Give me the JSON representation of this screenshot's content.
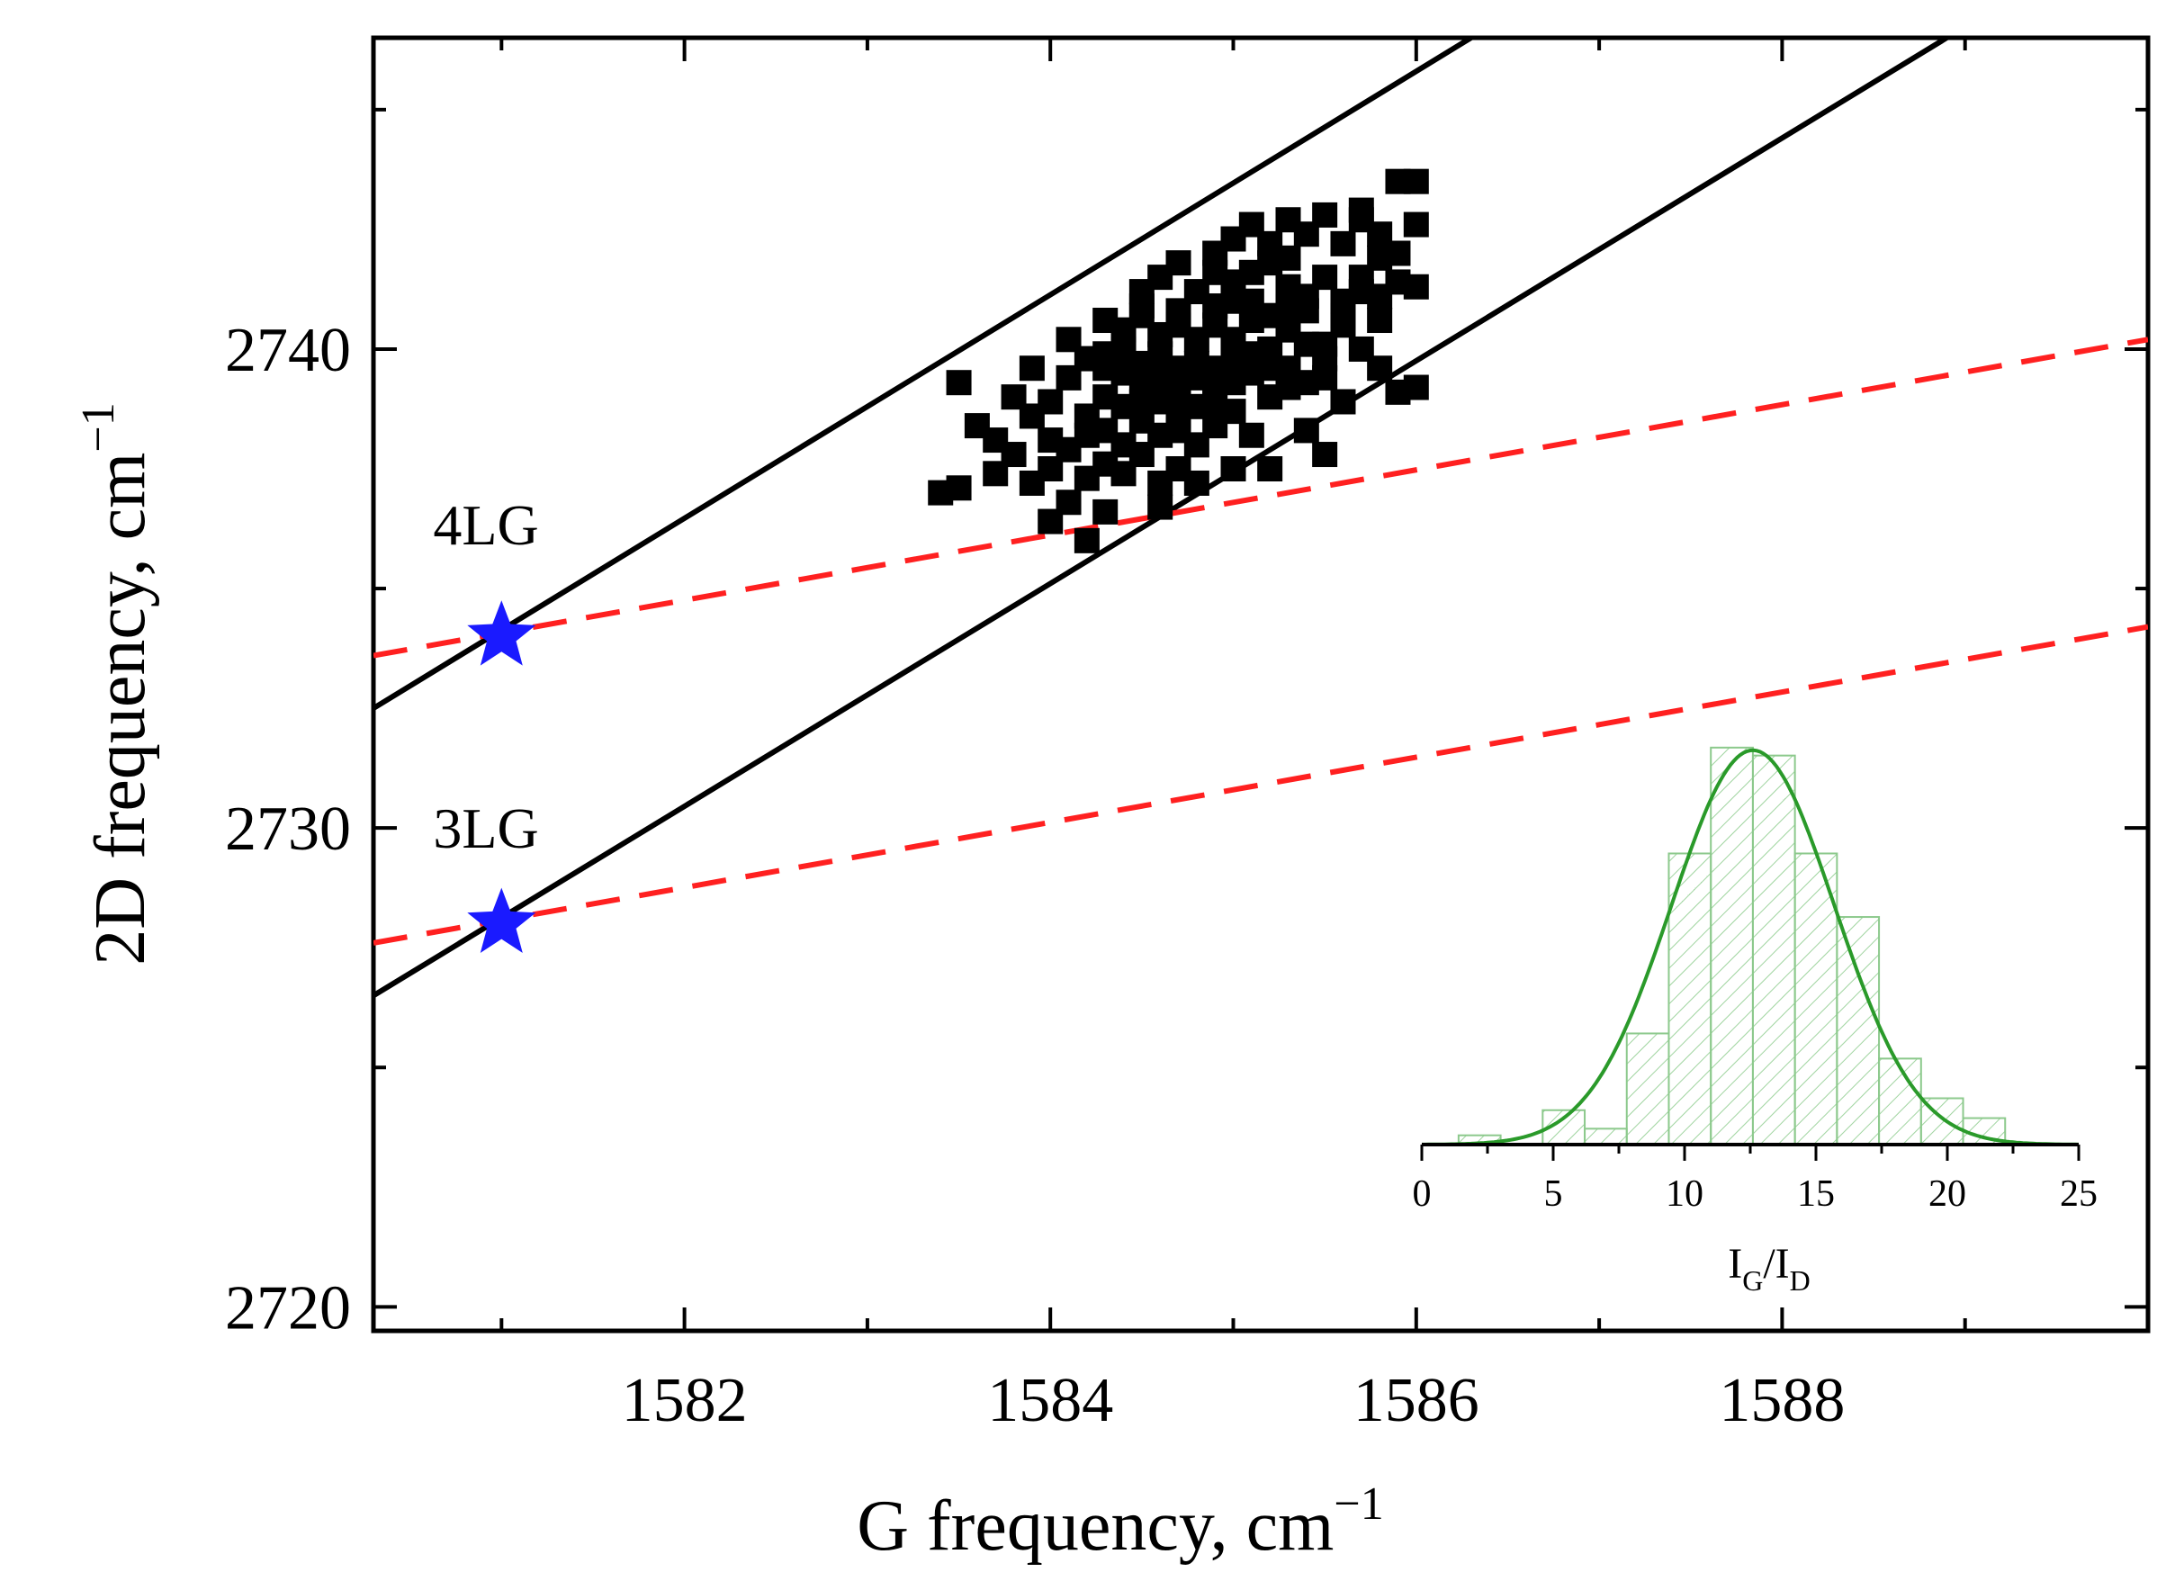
{
  "chart_data": [
    {
      "type": "scatter",
      "xlabel": "G frequency, cm",
      "xlabel_sup": "−1",
      "ylabel": "2D frequency, cm",
      "ylabel_sup": "−1",
      "xlim": [
        1580.3,
        1590.0
      ],
      "ylim": [
        2719.5,
        2746.5
      ],
      "x_ticks": [
        1582,
        1584,
        1586,
        1588
      ],
      "x_minor_ticks": [
        1581,
        1583,
        1585,
        1587,
        1589
      ],
      "y_ticks": [
        2720,
        2730,
        2740
      ],
      "y_minor_ticks": [
        2725,
        2735,
        2745
      ],
      "grid": false,
      "solid_lines": [
        {
          "x": [
            1580.3,
            1586.3
          ],
          "y": [
            2732.5,
            2746.5
          ]
        },
        {
          "x": [
            1580.3,
            1588.9
          ],
          "y": [
            2726.5,
            2746.5
          ]
        }
      ],
      "dashed_lines": [
        {
          "x": [
            1580.3,
            1590.0
          ],
          "y": [
            2733.6,
            2740.2
          ]
        },
        {
          "x": [
            1580.3,
            1590.0
          ],
          "y": [
            2727.6,
            2734.2
          ]
        }
      ],
      "line_colors": {
        "solid": "#000000",
        "dashed": "#ff2020"
      },
      "stars": [
        {
          "label": "4LG",
          "x": 1581.0,
          "y": 2734.0
        },
        {
          "label": "3LG",
          "x": 1581.0,
          "y": 2728.0
        }
      ],
      "star_color": "#1a1aff",
      "scatter_color": "#000000",
      "scatter_points": [
        [
          1583.4,
          2737.0
        ],
        [
          1583.5,
          2737.1
        ],
        [
          1583.5,
          2739.3
        ],
        [
          1583.6,
          2738.4
        ],
        [
          1583.7,
          2738.1
        ],
        [
          1583.7,
          2737.4
        ],
        [
          1583.8,
          2739.0
        ],
        [
          1583.8,
          2737.8
        ],
        [
          1583.9,
          2737.2
        ],
        [
          1583.9,
          2738.6
        ],
        [
          1583.9,
          2739.6
        ],
        [
          1584.0,
          2738.9
        ],
        [
          1584.0,
          2738.1
        ],
        [
          1584.0,
          2737.5
        ],
        [
          1584.0,
          2736.4
        ],
        [
          1584.1,
          2739.4
        ],
        [
          1584.1,
          2737.9
        ],
        [
          1584.1,
          2736.8
        ],
        [
          1584.1,
          2740.2
        ],
        [
          1584.2,
          2738.6
        ],
        [
          1584.2,
          2737.3
        ],
        [
          1584.2,
          2736.0
        ],
        [
          1584.2,
          2739.8
        ],
        [
          1584.3,
          2739.0
        ],
        [
          1584.3,
          2737.6
        ],
        [
          1584.3,
          2738.3
        ],
        [
          1584.3,
          2740.6
        ],
        [
          1584.3,
          2736.6
        ],
        [
          1584.4,
          2739.5
        ],
        [
          1584.4,
          2738.0
        ],
        [
          1584.4,
          2738.8
        ],
        [
          1584.4,
          2740.0
        ],
        [
          1584.4,
          2737.4
        ],
        [
          1584.5,
          2739.2
        ],
        [
          1584.5,
          2740.9
        ],
        [
          1584.5,
          2738.5
        ],
        [
          1584.5,
          2737.8
        ],
        [
          1584.5,
          2741.2
        ],
        [
          1584.5,
          2739.7
        ],
        [
          1584.6,
          2738.9
        ],
        [
          1584.6,
          2740.3
        ],
        [
          1584.6,
          2737.2
        ],
        [
          1584.6,
          2741.5
        ],
        [
          1584.6,
          2738.2
        ],
        [
          1584.6,
          2736.7
        ],
        [
          1584.7,
          2739.6
        ],
        [
          1584.7,
          2740.8
        ],
        [
          1584.7,
          2738.6
        ],
        [
          1584.7,
          2741.8
        ],
        [
          1584.7,
          2737.5
        ],
        [
          1584.7,
          2739.1
        ],
        [
          1584.8,
          2740.2
        ],
        [
          1584.8,
          2738.8
        ],
        [
          1584.8,
          2741.2
        ],
        [
          1584.8,
          2739.7
        ],
        [
          1584.8,
          2738.0
        ],
        [
          1584.8,
          2737.2
        ],
        [
          1584.9,
          2741.6
        ],
        [
          1584.9,
          2740.5
        ],
        [
          1584.9,
          2739.3
        ],
        [
          1584.9,
          2738.4
        ],
        [
          1584.9,
          2742.0
        ],
        [
          1584.9,
          2740.9
        ],
        [
          1585.0,
          2739.8
        ],
        [
          1585.0,
          2741.4
        ],
        [
          1585.0,
          2738.7
        ],
        [
          1585.0,
          2740.2
        ],
        [
          1585.0,
          2742.3
        ],
        [
          1585.0,
          2737.5
        ],
        [
          1585.1,
          2741.0
        ],
        [
          1585.1,
          2739.5
        ],
        [
          1585.1,
          2740.6
        ],
        [
          1585.1,
          2742.6
        ],
        [
          1585.1,
          2738.2
        ],
        [
          1585.2,
          2741.8
        ],
        [
          1585.2,
          2740.0
        ],
        [
          1585.2,
          2739.0
        ],
        [
          1585.2,
          2742.2
        ],
        [
          1585.2,
          2737.5
        ],
        [
          1585.3,
          2741.3
        ],
        [
          1585.3,
          2740.4
        ],
        [
          1585.3,
          2742.7
        ],
        [
          1585.3,
          2739.6
        ],
        [
          1585.3,
          2741.9
        ],
        [
          1585.4,
          2740.8
        ],
        [
          1585.4,
          2739.3
        ],
        [
          1585.4,
          2742.4
        ],
        [
          1585.4,
          2738.3
        ],
        [
          1585.5,
          2741.5
        ],
        [
          1585.5,
          2740.1
        ],
        [
          1585.5,
          2742.8
        ],
        [
          1585.5,
          2739.8
        ],
        [
          1585.5,
          2737.8
        ],
        [
          1585.6,
          2741.0
        ],
        [
          1585.6,
          2742.2
        ],
        [
          1585.6,
          2740.5
        ],
        [
          1585.6,
          2738.9
        ],
        [
          1585.7,
          2742.7
        ],
        [
          1585.7,
          2741.5
        ],
        [
          1585.7,
          2740.0
        ],
        [
          1585.7,
          2742.9
        ],
        [
          1585.8,
          2741.9
        ],
        [
          1585.8,
          2740.6
        ],
        [
          1585.8,
          2742.4
        ],
        [
          1585.8,
          2739.6
        ],
        [
          1585.9,
          2741.4
        ],
        [
          1585.9,
          2743.5
        ],
        [
          1585.9,
          2739.1
        ],
        [
          1586.0,
          2741.3
        ],
        [
          1586.0,
          2739.2
        ],
        [
          1586.0,
          2743.5
        ],
        [
          1584.3,
          2739.9
        ],
        [
          1584.4,
          2740.4
        ],
        [
          1584.5,
          2740.7
        ],
        [
          1584.6,
          2739.9
        ],
        [
          1584.7,
          2740.5
        ],
        [
          1584.8,
          2739.4
        ],
        [
          1584.9,
          2739.6
        ],
        [
          1585.0,
          2741.0
        ],
        [
          1585.1,
          2739.9
        ],
        [
          1585.2,
          2740.7
        ],
        [
          1585.3,
          2739.2
        ],
        [
          1585.4,
          2741.1
        ],
        [
          1584.2,
          2738.2
        ],
        [
          1584.3,
          2739.6
        ],
        [
          1584.5,
          2738.9
        ],
        [
          1584.6,
          2739.4
        ],
        [
          1584.7,
          2738.3
        ],
        [
          1584.9,
          2738.9
        ],
        [
          1585.0,
          2739.3
        ],
        [
          1585.2,
          2739.6
        ],
        [
          1585.4,
          2740.1
        ],
        [
          1585.6,
          2740.7
        ],
        [
          1585.7,
          2741.2
        ],
        [
          1585.9,
          2742.0
        ],
        [
          1585.8,
          2741.1
        ],
        [
          1586.0,
          2742.6
        ],
        [
          1585.5,
          2739.4
        ],
        [
          1585.3,
          2740.9
        ],
        [
          1585.1,
          2741.6
        ]
      ]
    },
    {
      "type": "bar",
      "xlabel_main": "I",
      "xlabel_sub1": "G",
      "xlabel_slash": "/I",
      "xlabel_sub2": "D",
      "xlim": [
        0,
        25
      ],
      "x_ticks": [
        0,
        5,
        10,
        15,
        20,
        25
      ],
      "bin_width": 1.6,
      "bins": [
        {
          "x0": 1.4,
          "h": 0.7
        },
        {
          "x0": 4.6,
          "h": 2.6
        },
        {
          "x0": 6.2,
          "h": 1.2
        },
        {
          "x0": 7.8,
          "h": 8.4
        },
        {
          "x0": 9.4,
          "h": 22.0
        },
        {
          "x0": 11.0,
          "h": 30.0
        },
        {
          "x0": 12.6,
          "h": 29.4
        },
        {
          "x0": 14.2,
          "h": 22.0
        },
        {
          "x0": 15.8,
          "h": 17.2
        },
        {
          "x0": 17.4,
          "h": 6.5
        },
        {
          "x0": 19.0,
          "h": 3.5
        },
        {
          "x0": 20.6,
          "h": 2.0
        }
      ],
      "ylim": [
        0,
        34
      ],
      "fit": {
        "type": "gaussian",
        "mean": 12.6,
        "sigma": 3.1,
        "amplitude": 29.8
      },
      "color": "#2a9a2a"
    }
  ]
}
